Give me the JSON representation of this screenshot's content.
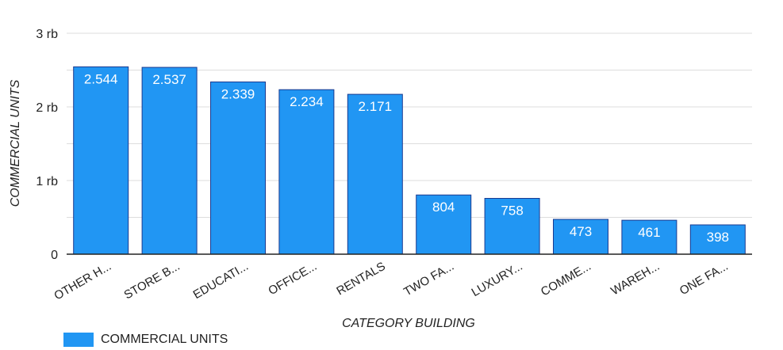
{
  "chart_data": {
    "type": "bar",
    "categories": [
      "OTHER H...",
      "STORE B...",
      "EDUCATI...",
      "OFFICE...",
      "RENTALS",
      "TWO FA...",
      "LUXURY...",
      "COMME...",
      "WAREH...",
      "ONE FA..."
    ],
    "series": [
      {
        "name": "COMMERCIAL UNITS",
        "values": [
          2544,
          2537,
          2339,
          2234,
          2171,
          804,
          758,
          473,
          461,
          398
        ],
        "labels": [
          "2.544",
          "2.537",
          "2.339",
          "2.234",
          "2.171",
          "804",
          "758",
          "473",
          "461",
          "398"
        ]
      }
    ],
    "xlabel": "CATEGORY BUILDING",
    "ylabel": "COMMERCIAL UNITS",
    "ylim": [
      0,
      3000
    ],
    "yticks": [
      0,
      1000,
      2000,
      3000
    ],
    "ytick_labels": [
      "0",
      "1 rb",
      "2 rb",
      "3 rb"
    ],
    "grid": true,
    "legend_position": "bottom-left",
    "colors": {
      "bar": "#2196f3",
      "bar_edge": "#1a3a8f",
      "grid": "#dddddd",
      "axis": "#222222"
    }
  }
}
